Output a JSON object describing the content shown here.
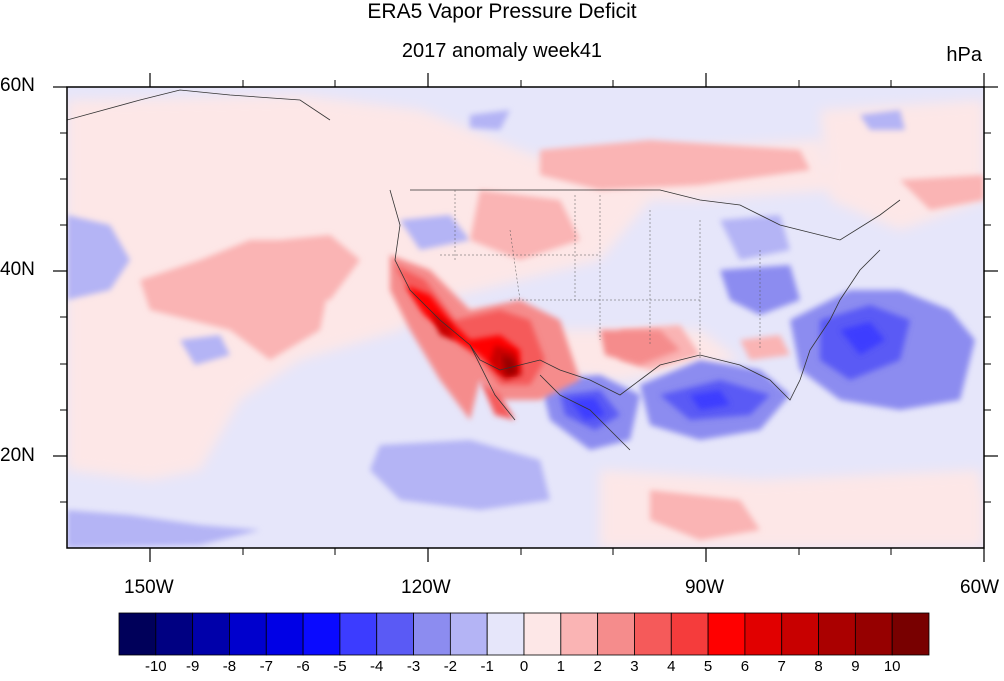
{
  "title": "ERA5 Vapor Pressure Deficit",
  "subtitle": "2017 anomaly week41",
  "units": "hPa",
  "map": {
    "lon_range": [
      -160,
      -60
    ],
    "lat_range": [
      10,
      60
    ],
    "lat_ticks": [
      "60N",
      "40N",
      "20N"
    ],
    "lon_ticks": [
      "150W",
      "120W",
      "90W",
      "60W"
    ]
  },
  "colorbar": {
    "labels": [
      "-10",
      "-9",
      "-8",
      "-7",
      "-6",
      "-5",
      "-4",
      "-3",
      "-2",
      "-1",
      "0",
      "1",
      "2",
      "3",
      "4",
      "5",
      "6",
      "7",
      "8",
      "9",
      "10"
    ],
    "colors": [
      "#00005a",
      "#000082",
      "#0000aa",
      "#0000cd",
      "#0000e6",
      "#0a0aff",
      "#3c3cff",
      "#5a5af5",
      "#8c8cf0",
      "#b4b4f5",
      "#e6e6fa",
      "#fde7e7",
      "#fab4b4",
      "#f58c8c",
      "#f55a5a",
      "#f53c3c",
      "#ff0000",
      "#e10000",
      "#c80000",
      "#aa0000",
      "#960000",
      "#780000"
    ]
  }
}
